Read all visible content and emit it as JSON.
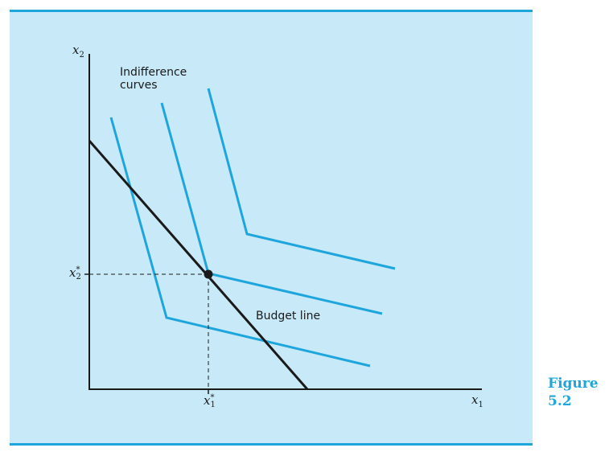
{
  "colors": {
    "panel": "#c8e9f8",
    "rule": "#1ea6dc",
    "curve": "#1ea6dc",
    "axis": "#1a1a1a",
    "caption": "#1ea6dc"
  },
  "labels": {
    "y_axis_var": "x",
    "y_axis_sub": "2",
    "x_axis_var": "x",
    "x_axis_sub": "1",
    "x2_star_var": "x",
    "x2_star_sub": "2",
    "x2_star_sup": "*",
    "x1_star_var": "x",
    "x1_star_sub": "1",
    "x1_star_sup": "*",
    "indifference_line1": "Indifference",
    "indifference_line2": "curves",
    "budget": "Budget line"
  },
  "caption": {
    "word": "Figure",
    "number": "5.2"
  }
}
